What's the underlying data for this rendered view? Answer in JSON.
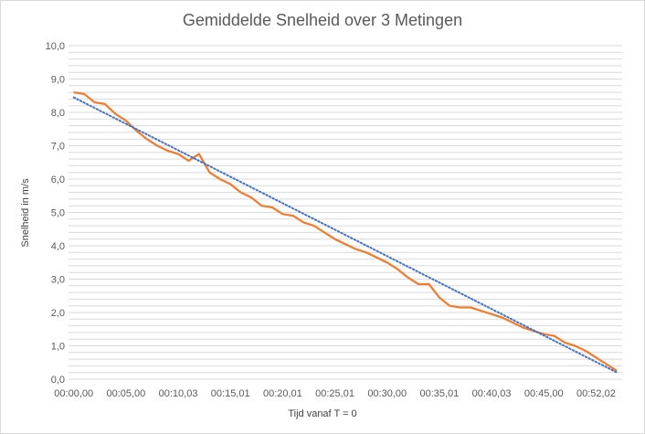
{
  "chart_data": {
    "type": "line",
    "title": "Gemiddelde Snelheid over 3 Metingen",
    "xlabel": "Tijd vanaf T = 0",
    "ylabel": "Snelheid in m/s",
    "ylim": [
      0,
      10
    ],
    "y_ticks": [
      "0,0",
      "1,0",
      "2,0",
      "3,0",
      "4,0",
      "5,0",
      "6,0",
      "7,0",
      "8,0",
      "9,0",
      "10,0"
    ],
    "x_tick_labels": [
      "00:00,00",
      "00:05,00",
      "00:10,03",
      "00:15,01",
      "00:20,01",
      "00:25,01",
      "00:30,00",
      "00:35,01",
      "00:40,03",
      "00:45,00",
      "00:52,02"
    ],
    "grid": true,
    "series": [
      {
        "color": "#ed7d31",
        "values": [
          8.6,
          8.55,
          8.3,
          8.25,
          7.95,
          7.75,
          7.45,
          7.2,
          7.0,
          6.85,
          6.75,
          6.55,
          6.75,
          6.2,
          6.0,
          5.85,
          5.6,
          5.45,
          5.2,
          5.15,
          4.95,
          4.9,
          4.7,
          4.6,
          4.4,
          4.2,
          4.05,
          3.9,
          3.8,
          3.65,
          3.5,
          3.3,
          3.05,
          2.85,
          2.85,
          2.45,
          2.2,
          2.15,
          2.15,
          2.05,
          1.95,
          1.85,
          1.7,
          1.55,
          1.45,
          1.35,
          1.3,
          1.1,
          1.0,
          0.85,
          0.65,
          0.45,
          0.25
        ]
      },
      {
        "style": "dotted",
        "color": "#4472c4",
        "values": [
          8.45,
          0.2
        ]
      }
    ]
  }
}
